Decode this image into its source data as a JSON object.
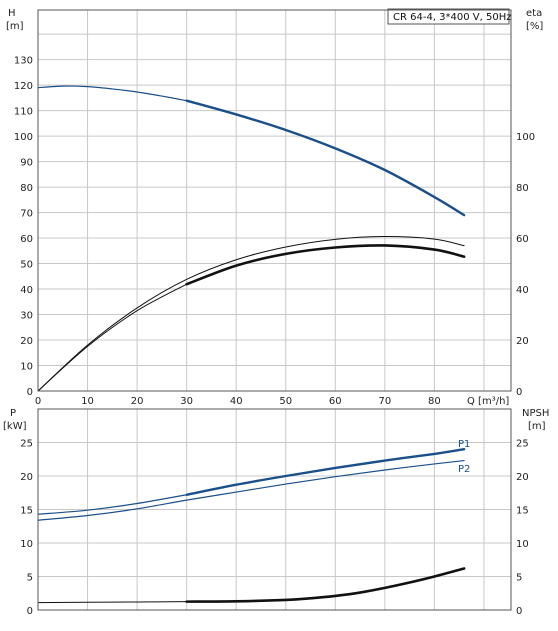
{
  "legend": "CR 64-4, 3*400 V, 50Hz",
  "colors": {
    "grid": "#c8c8c8",
    "frame": "#555555",
    "blue": "#1a4f8a",
    "black": "#111111"
  },
  "chart_data": [
    {
      "type": "line",
      "panel": "top",
      "xlabel": "Q [m³/h]",
      "ylabel_left": [
        "H",
        "[m]"
      ],
      "ylabel_right": [
        "eta",
        "[%]"
      ],
      "xlim": [
        0,
        90
      ],
      "ylim_left": [
        0,
        140
      ],
      "ylim_right": [
        0,
        140
      ],
      "x_ticks": [
        "0",
        "10",
        "20",
        "30",
        "40",
        "50",
        "60",
        "70",
        "80"
      ],
      "y_ticks_left": [
        "0",
        "10",
        "20",
        "30",
        "40",
        "50",
        "60",
        "70",
        "80",
        "90",
        "100",
        "110",
        "120",
        "130"
      ],
      "y_ticks_right": [
        "0",
        "20",
        "40",
        "60",
        "80",
        "100"
      ],
      "grid": true,
      "series": [
        {
          "axis": "left",
          "style": "thin-blue",
          "x": [
            0,
            5,
            10,
            15,
            20,
            25,
            30
          ],
          "y": [
            119,
            119.6,
            119.4,
            118.5,
            117.3,
            115.7,
            113.9
          ]
        },
        {
          "axis": "left",
          "style": "thick-blue",
          "x": [
            30,
            40,
            50,
            60,
            70,
            80,
            86
          ],
          "y": [
            113.9,
            108.5,
            102.4,
            95.2,
            86.7,
            76.1,
            69.0
          ]
        },
        {
          "axis": "right",
          "style": "thin-black",
          "x": [
            0,
            10,
            20,
            30
          ],
          "y": [
            0,
            17.5,
            31.5,
            41.9
          ]
        },
        {
          "axis": "right",
          "style": "thick-black",
          "x": [
            30,
            40,
            50,
            60,
            70,
            80,
            86
          ],
          "y": [
            41.9,
            49.2,
            53.8,
            56.3,
            57.1,
            55.5,
            52.7
          ]
        },
        {
          "axis": "right",
          "style": "thin-black",
          "x": [
            0,
            10,
            20,
            30,
            40,
            50,
            60,
            70,
            80,
            86
          ],
          "y": [
            0,
            18.0,
            32.6,
            43.8,
            51.5,
            56.5,
            59.5,
            60.6,
            59.6,
            57.0
          ]
        }
      ]
    },
    {
      "type": "line",
      "panel": "bottom",
      "ylabel_left": [
        "P",
        "[kW]"
      ],
      "ylabel_right": [
        "NPSH",
        "[m]"
      ],
      "xlim": [
        0,
        90
      ],
      "ylim_left": [
        0,
        28
      ],
      "ylim_right": [
        0,
        28
      ],
      "y_ticks_left": [
        "0",
        "5",
        "10",
        "15",
        "20",
        "25"
      ],
      "y_ticks_right": [
        "0",
        "5",
        "10",
        "15",
        "20",
        "25"
      ],
      "grid": true,
      "series": [
        {
          "name": "P1",
          "axis": "left",
          "style": "thin-blue",
          "x": [
            0,
            10,
            20,
            30
          ],
          "y": [
            14.3,
            14.9,
            15.9,
            17.2
          ]
        },
        {
          "name": "P1",
          "axis": "left",
          "style": "thick-blue",
          "x": [
            30,
            40,
            50,
            60,
            70,
            80,
            86
          ],
          "y": [
            17.2,
            18.7,
            20.0,
            21.2,
            22.3,
            23.3,
            24.0
          ]
        },
        {
          "name": "P2",
          "axis": "left",
          "style": "thin-blue",
          "x": [
            0,
            10,
            20,
            30,
            40,
            50,
            60,
            70,
            80,
            86
          ],
          "y": [
            13.4,
            14.1,
            15.1,
            16.4,
            17.6,
            18.8,
            19.9,
            20.9,
            21.8,
            22.3
          ]
        },
        {
          "axis": "right",
          "style": "thin-black",
          "x": [
            0,
            10,
            20,
            30
          ],
          "y": [
            1.1,
            1.15,
            1.2,
            1.25
          ]
        },
        {
          "axis": "right",
          "style": "thick-black",
          "x": [
            30,
            40,
            50,
            55,
            60,
            65,
            70,
            75,
            80,
            86
          ],
          "y": [
            1.25,
            1.3,
            1.5,
            1.75,
            2.1,
            2.6,
            3.3,
            4.1,
            5.0,
            6.2
          ]
        }
      ]
    }
  ]
}
